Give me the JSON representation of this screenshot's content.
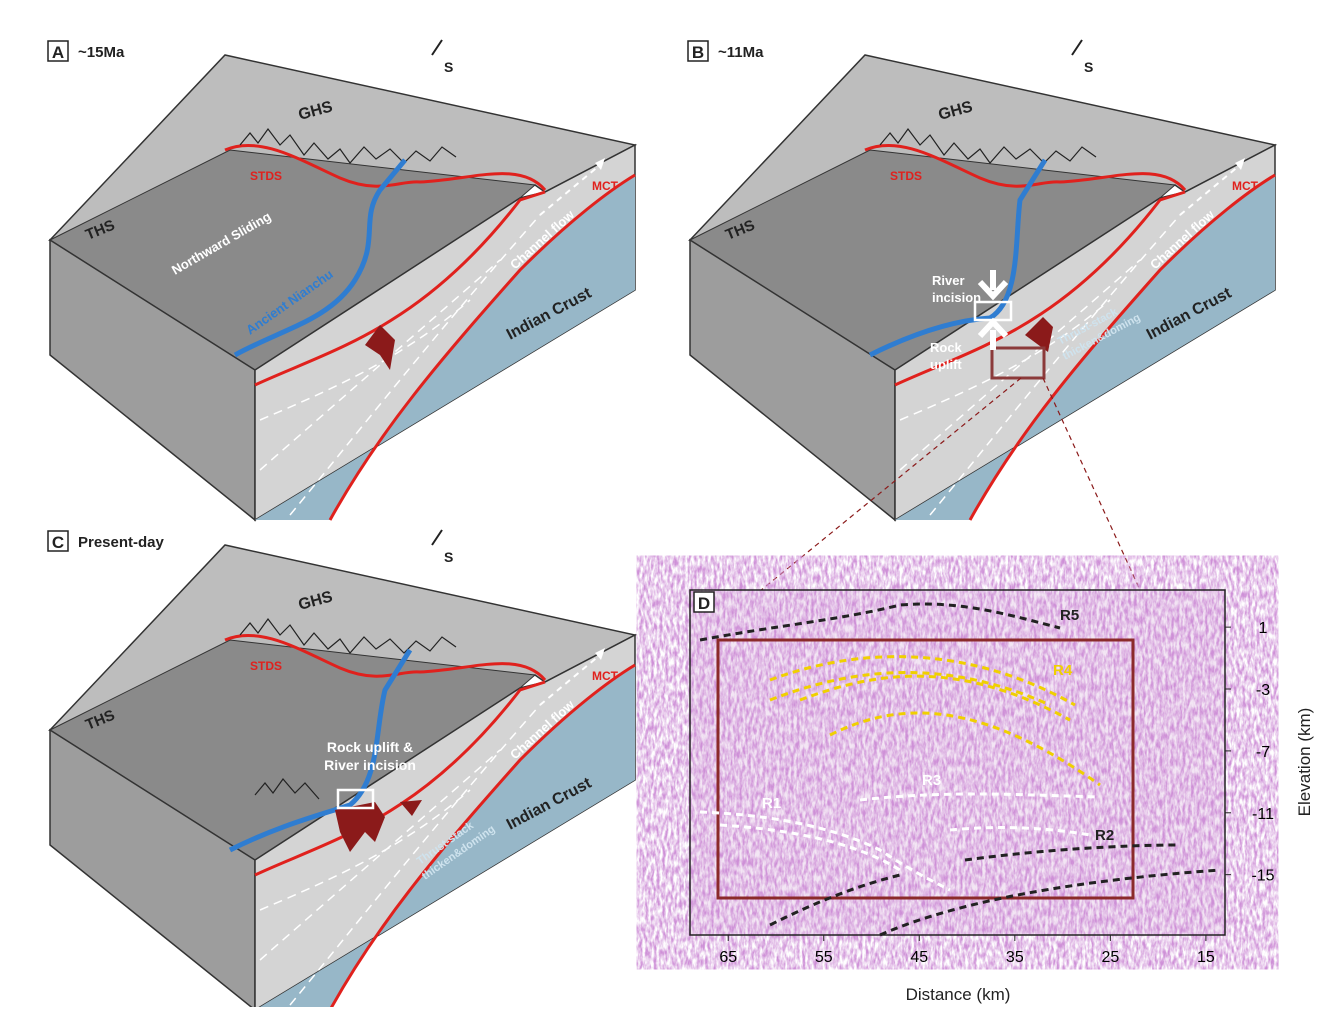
{
  "panels": [
    {
      "letter": "A",
      "title": "~15Ma",
      "north": "S",
      "ghs": "GHS",
      "stds": "STDS",
      "mct": "MCT",
      "ths": "THS",
      "sliding": "Northward Sliding",
      "river": "Ancient Nianchu",
      "channel": "Channel flow",
      "crust": "Indian Crust"
    },
    {
      "letter": "B",
      "title": "~11Ma",
      "north": "S",
      "ghs": "GHS",
      "stds": "STDS",
      "mct": "MCT",
      "ths": "THS",
      "incision": [
        "River",
        "incision"
      ],
      "uplift": [
        "Rock",
        "uplift"
      ],
      "channel": "Channel flow",
      "crust": "Indian Crust",
      "thrust": [
        "Thrust-stack",
        "thicken&doming"
      ]
    },
    {
      "letter": "C",
      "title": "Present-day",
      "north": "S",
      "ghs": "GHS",
      "stds": "STDS",
      "mct": "MCT",
      "ths": "THS",
      "uplift_incision": [
        "Rock uplift &",
        "River incision"
      ],
      "channel": "Channel flow",
      "crust": "Indian Crust",
      "thrust": [
        "Thrust-stack",
        "thicken&doming"
      ]
    }
  ],
  "chart_data": {
    "type": "seismic",
    "letter": "D",
    "xlabel": "Distance (km)",
    "ylabel": "Elevation (km)",
    "xlim": [
      69,
      13
    ],
    "ylim": [
      -18.9,
      3.4
    ],
    "xticks": [
      65,
      55,
      45,
      35,
      25,
      15
    ],
    "yticks": [
      1,
      -3,
      -7,
      -11,
      -15
    ],
    "reflectors": [
      "R1",
      "R2",
      "R3",
      "R4",
      "R5"
    ]
  }
}
